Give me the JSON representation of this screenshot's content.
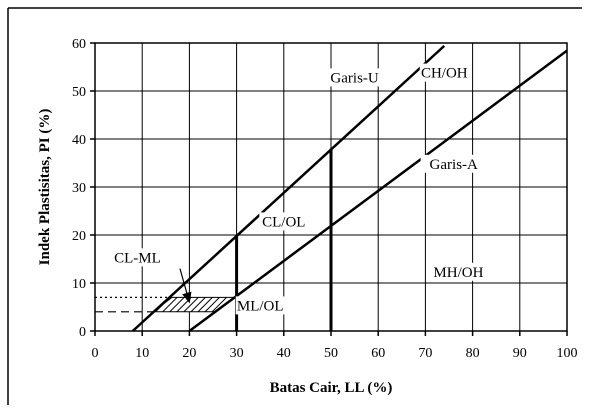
{
  "chart_data": {
    "type": "line",
    "title": "",
    "xlabel": "Batas Cair, LL (%)",
    "ylabel": "Indek Plastisitas, PI (%)",
    "xlim": [
      0,
      100
    ],
    "ylim": [
      0,
      60
    ],
    "x_ticks": [
      0,
      10,
      20,
      30,
      40,
      50,
      60,
      70,
      80,
      90,
      100
    ],
    "y_ticks": [
      0,
      10,
      20,
      30,
      40,
      50,
      60
    ],
    "grid": true,
    "series": [
      {
        "name": "Garis-U",
        "points": [
          [
            8,
            0
          ],
          [
            74,
            59.4
          ]
        ]
      },
      {
        "name": "Garis-A",
        "points": [
          [
            20,
            0
          ],
          [
            100,
            58.4
          ]
        ]
      },
      {
        "name": "",
        "points": [
          [
            30,
            0
          ],
          [
            30,
            20
          ]
        ]
      },
      {
        "name": "",
        "points": [
          [
            50,
            0
          ],
          [
            50,
            38
          ]
        ]
      }
    ],
    "hatched_zone": {
      "name": "CL-ML",
      "points": [
        [
          12.4,
          4
        ],
        [
          25.5,
          4
        ],
        [
          29.6,
          7
        ],
        [
          16.3,
          7
        ]
      ]
    },
    "dashed_lines": [
      {
        "points": [
          [
            0,
            7
          ],
          [
            16.3,
            7
          ]
        ],
        "style": "dotted"
      },
      {
        "points": [
          [
            0,
            4
          ],
          [
            12.4,
            4
          ]
        ],
        "style": "dashed"
      }
    ],
    "annotations": [
      {
        "text": "Garis-U",
        "x": 55,
        "y": 52
      },
      {
        "text": "CH/OH",
        "x": 74,
        "y": 53
      },
      {
        "text": "Garis-A",
        "x": 76,
        "y": 34
      },
      {
        "text": "CL/OL",
        "x": 40,
        "y": 22
      },
      {
        "text": "CL-ML",
        "x": 9,
        "y": 14.5
      },
      {
        "text": "MH/OH",
        "x": 77,
        "y": 11.5
      },
      {
        "text": "ML/OL",
        "x": 35,
        "y": 4.5
      }
    ],
    "arrow": {
      "from": [
        18,
        13
      ],
      "to": [
        20,
        6
      ]
    }
  }
}
